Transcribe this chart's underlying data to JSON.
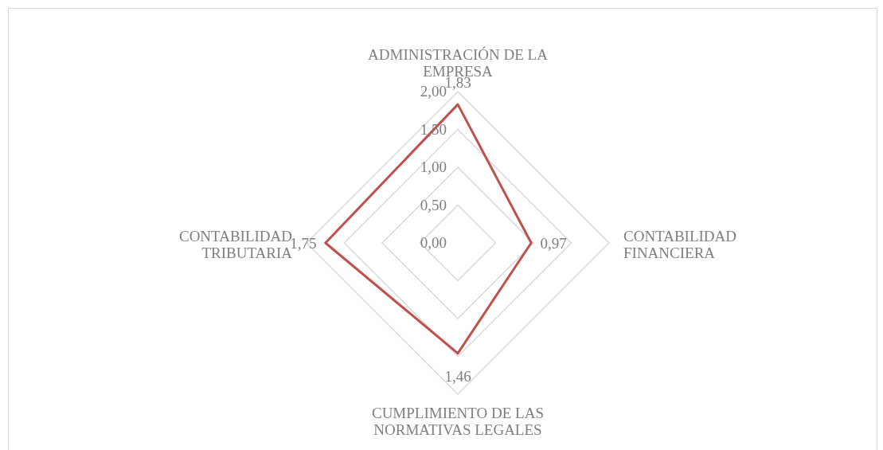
{
  "chart_data": {
    "type": "radar",
    "categories": [
      "ADMINISTRACIÓN DE LA EMPRESA",
      "CONTABILIDAD FINANCIERA",
      "CUMPLIMIENTO DE LAS NORMATIVAS LEGALES",
      "CONTABILIDAD TRIBUTARIA"
    ],
    "series": [
      {
        "color": "#c0504d",
        "values": [
          1.83,
          0.97,
          1.46,
          1.75
        ],
        "value_labels": [
          "1,83",
          "0,97",
          "1,46",
          "1,75"
        ]
      }
    ],
    "ylim": [
      0,
      2
    ],
    "yticks": [
      {
        "value": 0,
        "label": "0,00"
      },
      {
        "value": 0.5,
        "label": "0,50"
      },
      {
        "value": 1,
        "label": "1,00"
      },
      {
        "value": 1.5,
        "label": "1,50"
      },
      {
        "value": 2,
        "label": "2,00"
      }
    ],
    "grid": true
  }
}
